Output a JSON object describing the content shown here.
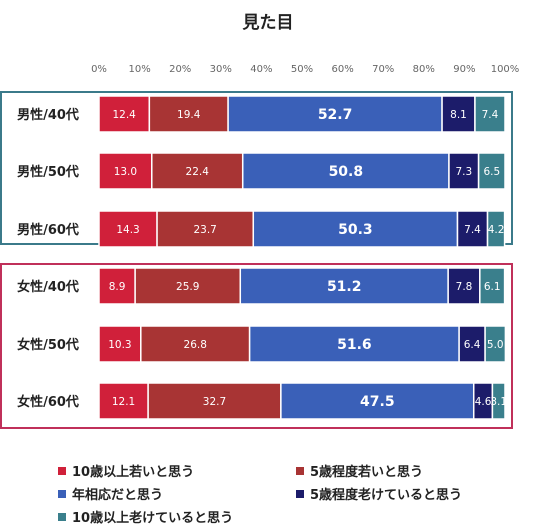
{
  "chart_data": {
    "type": "bar",
    "orientation": "horizontal",
    "stacked": "percent",
    "title": "見た目",
    "xlim": [
      0,
      100
    ],
    "x_tick_labels": [
      "0%",
      "10%",
      "20%",
      "30%",
      "40%",
      "50%",
      "60%",
      "70%",
      "80%",
      "90%",
      "100%"
    ],
    "grid": false,
    "legend_position": "bottom",
    "categories": [
      "男性/40代",
      "男性/50代",
      "男性/60代",
      "女性/40代",
      "女性/50代",
      "女性/60代"
    ],
    "groups": [
      {
        "categories": [
          "男性/40代",
          "男性/50代",
          "男性/60代"
        ],
        "border_color": "#3b7a8a"
      },
      {
        "categories": [
          "女性/40代",
          "女性/50代",
          "女性/60代"
        ],
        "border_color": "#c0305a"
      }
    ],
    "series": [
      {
        "name": "10歳以上若いと思う",
        "color": "#d0203a",
        "values": [
          12.4,
          13.0,
          14.3,
          8.9,
          10.3,
          12.1
        ]
      },
      {
        "name": "5歳程度若いと思う",
        "color": "#a83434",
        "values": [
          19.4,
          22.4,
          23.7,
          25.9,
          26.8,
          32.7
        ]
      },
      {
        "name": "年相応だと思う",
        "color": "#3a60b8",
        "values": [
          52.7,
          50.8,
          50.3,
          51.2,
          51.6,
          47.5
        ]
      },
      {
        "name": "5歳程度老けていると思う",
        "color": "#1c1c6a",
        "values": [
          8.1,
          7.3,
          7.4,
          7.8,
          6.4,
          4.6
        ]
      },
      {
        "name": "10歳以上老けていると思う",
        "color": "#3a7f8c",
        "values": [
          7.4,
          6.5,
          4.2,
          6.1,
          5.0,
          3.1
        ]
      }
    ]
  }
}
